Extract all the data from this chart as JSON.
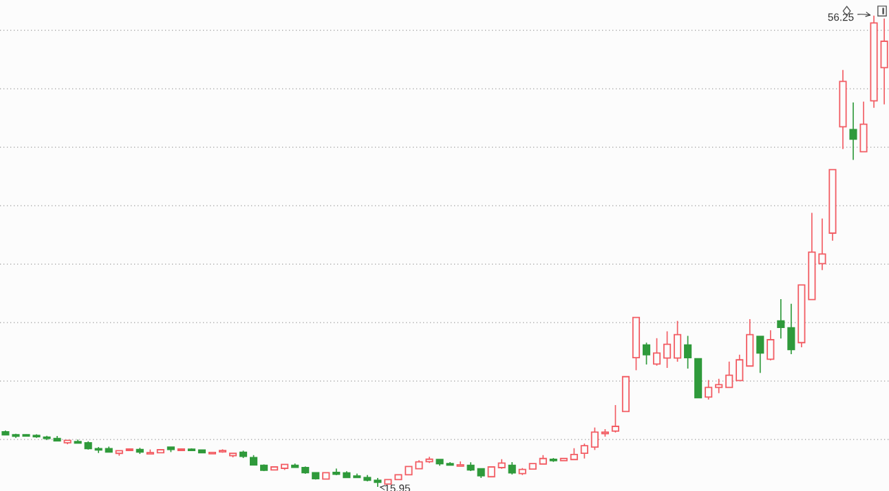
{
  "chart_data": {
    "type": "candlestick",
    "categories": [
      null,
      null,
      null,
      null,
      null,
      null,
      null,
      null,
      null,
      null,
      null,
      null,
      null,
      null,
      null,
      null,
      null,
      null,
      null,
      null,
      null,
      null,
      null,
      null,
      null,
      null,
      null,
      null,
      null,
      null,
      null,
      null,
      null,
      null,
      null,
      null,
      null,
      null,
      null,
      null,
      null,
      null,
      null,
      null,
      null,
      null,
      null,
      null,
      null,
      null,
      null,
      null,
      null,
      null,
      null,
      null,
      null,
      null,
      null,
      null,
      null,
      null,
      null,
      null,
      null,
      null,
      null,
      null,
      null,
      null,
      null,
      null,
      null,
      null,
      null,
      null,
      null,
      null,
      null,
      null,
      null,
      null,
      null,
      null,
      null,
      null
    ],
    "ohlc": [
      [
        20.65,
        20.76,
        20.35,
        20.39
      ],
      [
        20.34,
        20.49,
        20.14,
        20.34
      ],
      [
        20.35,
        20.43,
        20.24,
        20.35
      ],
      [
        20.29,
        20.45,
        20.14,
        20.29
      ],
      [
        20.14,
        20.31,
        19.94,
        20.14
      ],
      [
        20.08,
        20.29,
        19.88,
        19.88
      ],
      [
        19.72,
        19.92,
        19.59,
        19.92
      ],
      [
        19.78,
        19.98,
        19.72,
        19.72
      ],
      [
        19.72,
        19.84,
        19.14,
        19.22
      ],
      [
        19.16,
        19.35,
        18.84,
        19.16
      ],
      [
        19.22,
        19.39,
        18.92,
        18.92
      ],
      [
        18.81,
        19.04,
        18.61,
        19.04
      ],
      [
        19.12,
        19.24,
        19.0,
        19.12
      ],
      [
        19.14,
        19.28,
        18.76,
        18.92
      ],
      [
        18.76,
        19.14,
        18.76,
        18.88
      ],
      [
        18.86,
        19.12,
        18.86,
        19.12
      ],
      [
        19.34,
        19.34,
        18.92,
        19.14
      ],
      [
        19.12,
        19.24,
        19.0,
        19.12
      ],
      [
        19.12,
        19.24,
        19.0,
        19.1
      ],
      [
        19.1,
        19.1,
        18.86,
        18.86
      ],
      [
        18.78,
        18.88,
        18.78,
        18.88
      ],
      [
        18.94,
        19.16,
        18.86,
        19.04
      ],
      [
        18.61,
        18.81,
        18.47,
        18.81
      ],
      [
        18.9,
        19.04,
        18.41,
        18.55
      ],
      [
        18.45,
        18.66,
        17.82,
        17.82
      ],
      [
        17.78,
        17.86,
        17.29,
        17.37
      ],
      [
        17.39,
        17.65,
        17.39,
        17.65
      ],
      [
        17.53,
        17.86,
        17.39,
        17.86
      ],
      [
        17.78,
        17.94,
        17.61,
        17.61
      ],
      [
        17.59,
        17.69,
        17.06,
        17.16
      ],
      [
        17.16,
        17.16,
        16.57,
        16.65
      ],
      [
        16.61,
        17.16,
        16.61,
        17.16
      ],
      [
        17.19,
        17.51,
        16.94,
        17.02
      ],
      [
        17.14,
        17.28,
        16.75,
        16.75
      ],
      [
        16.81,
        17.08,
        16.81,
        16.81
      ],
      [
        16.75,
        16.96,
        16.41,
        16.51
      ],
      [
        16.51,
        16.71,
        15.95,
        16.34
      ],
      [
        16.18,
        16.57,
        16.18,
        16.57
      ],
      [
        16.57,
        16.98,
        16.57,
        16.98
      ],
      [
        16.98,
        17.69,
        16.98,
        17.69
      ],
      [
        17.49,
        18.22,
        17.49,
        18.08
      ],
      [
        18.1,
        18.51,
        17.98,
        18.31
      ],
      [
        18.29,
        18.29,
        17.75,
        17.92
      ],
      [
        17.88,
        18.06,
        17.78,
        17.86
      ],
      [
        17.76,
        18.12,
        17.76,
        17.78
      ],
      [
        17.78,
        18.04,
        17.29,
        17.39
      ],
      [
        17.49,
        17.49,
        16.71,
        16.9
      ],
      [
        16.81,
        17.65,
        16.81,
        17.65
      ],
      [
        17.59,
        18.31,
        17.49,
        17.98
      ],
      [
        17.78,
        18.06,
        17.0,
        17.14
      ],
      [
        17.08,
        17.55,
        16.96,
        17.43
      ],
      [
        17.47,
        17.94,
        17.47,
        17.94
      ],
      [
        17.9,
        18.66,
        17.9,
        18.37
      ],
      [
        18.25,
        18.41,
        18.08,
        18.24
      ],
      [
        18.19,
        18.37,
        18.19,
        18.37
      ],
      [
        18.28,
        19.25,
        18.28,
        18.72
      ],
      [
        18.82,
        19.65,
        18.37,
        19.47
      ],
      [
        19.35,
        21.02,
        19.1,
        20.63
      ],
      [
        20.55,
        20.88,
        20.24,
        20.57
      ],
      [
        20.71,
        22.94,
        20.59,
        21.12
      ],
      [
        22.39,
        25.37,
        22.39,
        25.37
      ],
      [
        27.0,
        30.43,
        25.92,
        30.43
      ],
      [
        28.08,
        28.28,
        26.41,
        27.24
      ],
      [
        26.45,
        28.66,
        26.31,
        27.39
      ],
      [
        26.96,
        29.25,
        26.12,
        28.14
      ],
      [
        26.96,
        30.14,
        26.65,
        28.96
      ],
      [
        28.08,
        28.86,
        26.06,
        27.0
      ],
      [
        26.9,
        26.9,
        23.57,
        23.57
      ],
      [
        23.63,
        25.08,
        23.41,
        24.45
      ],
      [
        24.45,
        25.19,
        23.96,
        24.69
      ],
      [
        24.45,
        26.66,
        24.45,
        25.49
      ],
      [
        25.04,
        27.25,
        25.04,
        26.81
      ],
      [
        26.28,
        30.29,
        26.28,
        28.96
      ],
      [
        28.81,
        28.81,
        25.69,
        27.39
      ],
      [
        26.86,
        29.34,
        26.76,
        28.53
      ],
      [
        30.14,
        32.0,
        28.63,
        29.59
      ],
      [
        29.55,
        31.61,
        27.29,
        27.69
      ],
      [
        28.28,
        33.22,
        27.88,
        33.22
      ],
      [
        31.96,
        39.39,
        31.96,
        36.02
      ],
      [
        35.04,
        38.9,
        34.49,
        35.86
      ],
      [
        37.65,
        43.08,
        37.0,
        43.08
      ],
      [
        46.75,
        51.61,
        44.84,
        50.63
      ],
      [
        46.51,
        48.82,
        43.92,
        45.69
      ],
      [
        44.61,
        48.9,
        44.61,
        46.96
      ],
      [
        48.96,
        56.25,
        48.37,
        55.63
      ],
      [
        51.8,
        56.0,
        48.66,
        54.06
      ]
    ],
    "colors": [
      "#2f9a3b",
      "#2f9a3b",
      "#2f9a3b",
      "#2f9a3b",
      "#2f9a3b",
      "#2f9a3b",
      "#f25c63",
      "#2f9a3b",
      "#2f9a3b",
      "#2f9a3b",
      "#2f9a3b",
      "#f25c63",
      "#f25c63",
      "#2f9a3b",
      "#f25c63",
      "#f25c63",
      "#2f9a3b",
      "#f25c63",
      "#2f9a3b",
      "#2f9a3b",
      "#f25c63",
      "#f25c63",
      "#f25c63",
      "#2f9a3b",
      "#2f9a3b",
      "#2f9a3b",
      "#f25c63",
      "#f25c63",
      "#2f9a3b",
      "#2f9a3b",
      "#2f9a3b",
      "#f25c63",
      "#2f9a3b",
      "#2f9a3b",
      "#2f9a3b",
      "#2f9a3b",
      "#2f9a3b",
      "#f25c63",
      "#f25c63",
      "#f25c63",
      "#f25c63",
      "#f25c63",
      "#2f9a3b",
      "#2f9a3b",
      "#f25c63",
      "#2f9a3b",
      "#2f9a3b",
      "#f25c63",
      "#f25c63",
      "#2f9a3b",
      "#f25c63",
      "#f25c63",
      "#f25c63",
      "#2f9a3b",
      "#f25c63",
      "#f25c63",
      "#f25c63",
      "#f25c63",
      "#f25c63",
      "#f25c63",
      "#f25c63",
      "#f25c63",
      "#2f9a3b",
      "#f25c63",
      "#f25c63",
      "#f25c63",
      "#2f9a3b",
      "#2f9a3b",
      "#f25c63",
      "#f25c63",
      "#f25c63",
      "#f25c63",
      "#f25c63",
      "#2f9a3b",
      "#f25c63",
      "#2f9a3b",
      "#2f9a3b",
      "#f25c63",
      "#f25c63",
      "#f25c63",
      "#f25c63",
      "#f25c63",
      "#2f9a3b",
      "#f25c63",
      "#f25c63",
      "#f25c63"
    ],
    "ylim": [
      15.59,
      57.59
    ],
    "yticks": [
      {
        "value": 20,
        "label": null
      },
      {
        "value": 25,
        "label": null
      },
      {
        "value": 30,
        "label": null
      },
      {
        "value": 35,
        "label": null
      },
      {
        "value": 40,
        "label": null
      },
      {
        "value": 45,
        "label": null
      },
      {
        "value": 50,
        "label": null
      },
      {
        "value": 55,
        "label": null
      }
    ],
    "grid": "y",
    "annotations": [
      "56.25",
      "15.95"
    ]
  }
}
